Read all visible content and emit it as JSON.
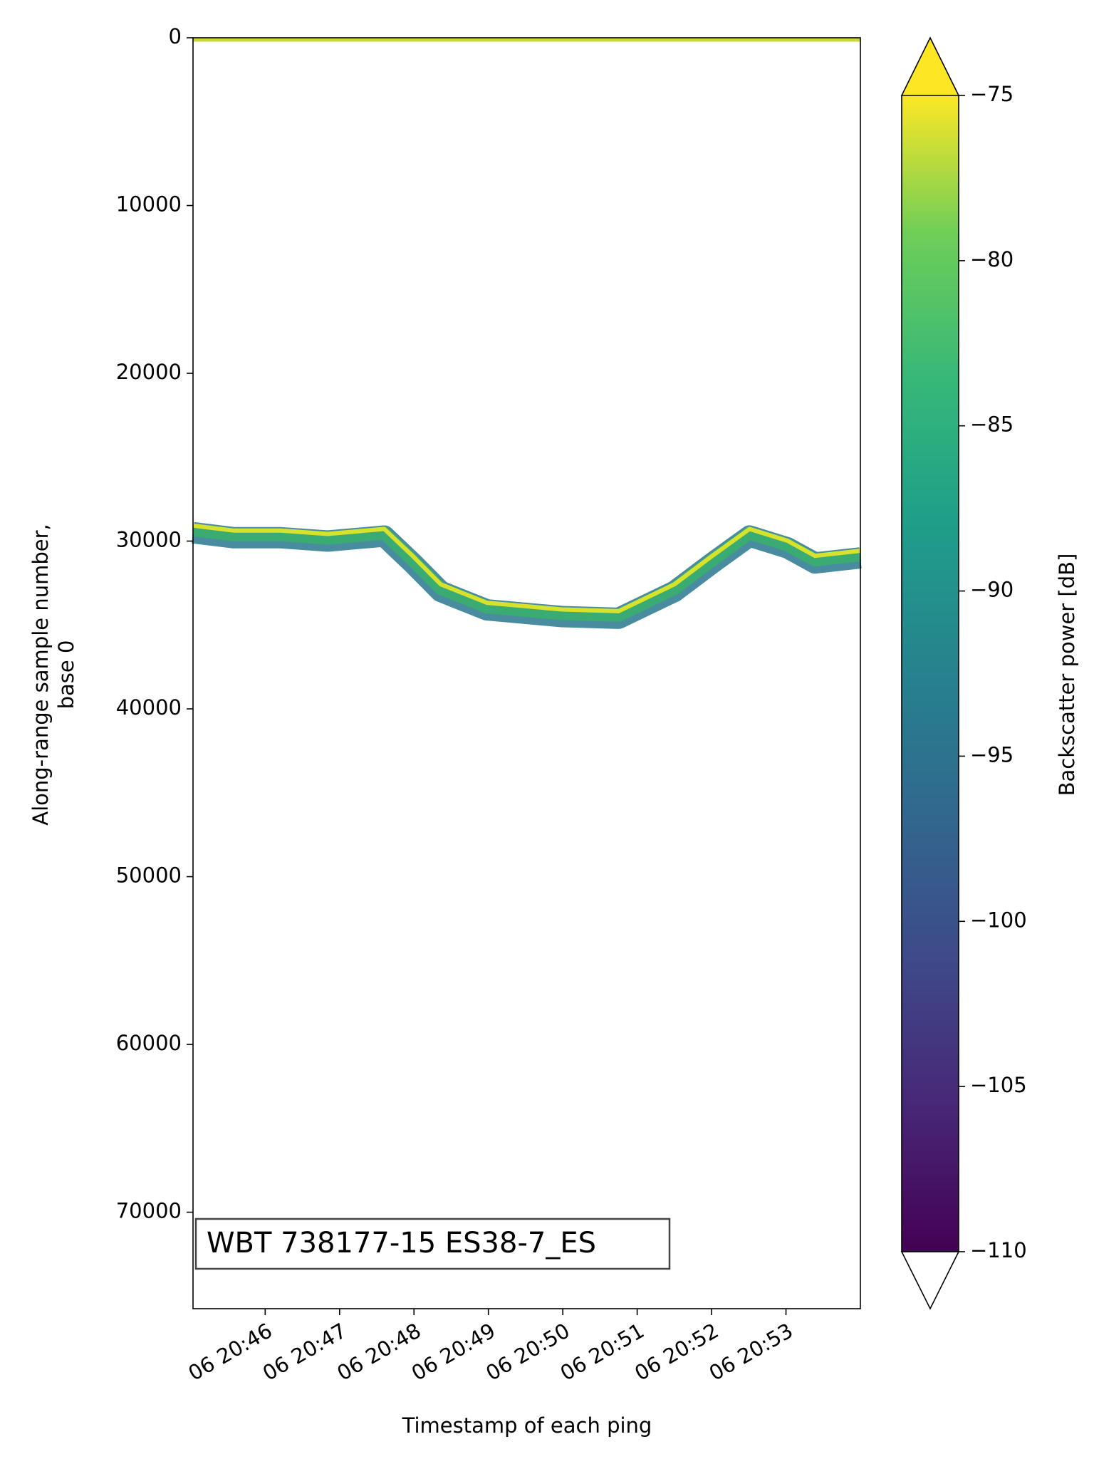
{
  "chart_data": {
    "type": "echogram",
    "ylabel": [
      "Along-range sample number,",
      "base 0"
    ],
    "xlabel": "Timestamp of each ping",
    "annotation": "WBT 738177-15 ES38-7_ES",
    "colorbar_label": "Backscatter power [dB]",
    "xlim": [
      45.03,
      54.0
    ],
    "xticks": [
      {
        "value": 46,
        "label": "06 20:46"
      },
      {
        "value": 47,
        "label": "06 20:47"
      },
      {
        "value": 48,
        "label": "06 20:48"
      },
      {
        "value": 49,
        "label": "06 20:49"
      },
      {
        "value": 50,
        "label": "06 20:50"
      },
      {
        "value": 51,
        "label": "06 20:51"
      },
      {
        "value": 52,
        "label": "06 20:52"
      },
      {
        "value": 53,
        "label": "06 20:53"
      }
    ],
    "ylim": [
      75750,
      0
    ],
    "yticks": [
      0,
      10000,
      20000,
      30000,
      40000,
      50000,
      60000,
      70000
    ],
    "clim": [
      -110,
      -75
    ],
    "cticks": [
      {
        "value": -75,
        "label": "−75"
      },
      {
        "value": -80,
        "label": "−80"
      },
      {
        "value": -85,
        "label": "−85"
      },
      {
        "value": -90,
        "label": "−90"
      },
      {
        "value": -95,
        "label": "−95"
      },
      {
        "value": -100,
        "label": "−100"
      },
      {
        "value": -105,
        "label": "−105"
      },
      {
        "value": -110,
        "label": "−110"
      }
    ],
    "x": [
      45.03,
      45.58,
      46.21,
      46.84,
      47.6,
      47.98,
      48.36,
      48.98,
      49.99,
      50.75,
      51.5,
      52.01,
      52.51,
      53.02,
      53.39,
      54.0
    ],
    "values": [
      29500,
      29800,
      29800,
      30000,
      29700,
      31300,
      33000,
      34100,
      34500,
      34600,
      33000,
      31300,
      29700,
      30400,
      31300,
      31000
    ],
    "color": "#3aab73"
  }
}
